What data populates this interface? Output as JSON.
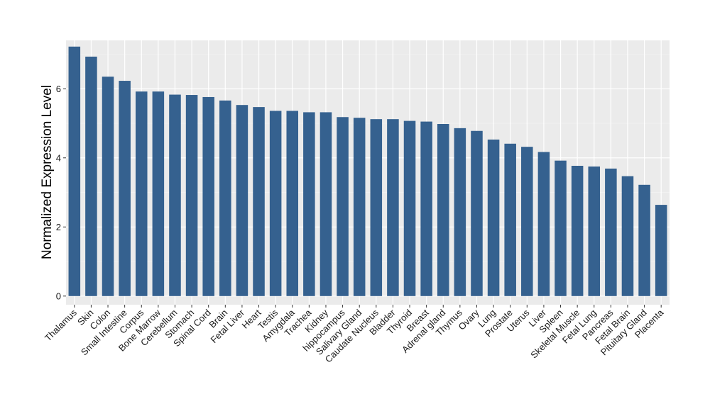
{
  "chart_data": {
    "type": "bar",
    "title": "",
    "xlabel": "",
    "ylabel": "Normalized Expression Level",
    "ylim": [
      -0.25,
      7.4
    ],
    "yticks": [
      0,
      2,
      4,
      6
    ],
    "grid": true,
    "legend": "none",
    "bar_color": "#35618F",
    "panel_color": "#EBEBEB",
    "categories": [
      "Thalamus",
      "Skin",
      "Colon",
      "Small Intestine",
      "Corpus",
      "Bone Marrow",
      "Cerebellum",
      "Stomach",
      "Spinal Cord",
      "Brain",
      "Fetal Liver",
      "Heart",
      "Testis",
      "Amygdala",
      "Trachea",
      "Kidney",
      "hippocampus",
      "Salivary Gland",
      "Caudate Nucleus",
      "Bladder",
      "Thyroid",
      "Breast",
      "Adrenal gland",
      "Thymus",
      "Ovary",
      "Lung",
      "Prostate",
      "Uterus",
      "Liver",
      "Spleen",
      "Skeletal Muscle",
      "Fetal Lung",
      "Pancreas",
      "Fetal Brain",
      "Pituitary Gland",
      "Placenta"
    ],
    "values": [
      7.22,
      6.93,
      6.35,
      6.23,
      5.92,
      5.92,
      5.83,
      5.82,
      5.76,
      5.66,
      5.53,
      5.47,
      5.36,
      5.36,
      5.32,
      5.32,
      5.18,
      5.16,
      5.12,
      5.12,
      5.07,
      5.05,
      4.98,
      4.86,
      4.78,
      4.53,
      4.41,
      4.32,
      4.17,
      3.92,
      3.77,
      3.75,
      3.69,
      3.47,
      3.22,
      2.64
    ]
  }
}
